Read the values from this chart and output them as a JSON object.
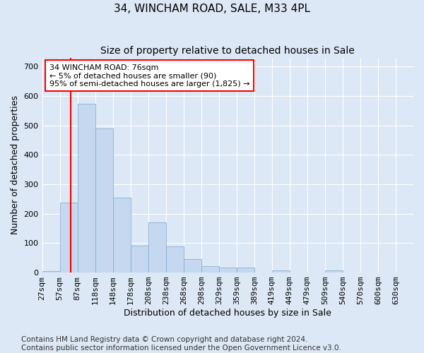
{
  "title": "34, WINCHAM ROAD, SALE, M33 4PL",
  "subtitle": "Size of property relative to detached houses in Sale",
  "xlabel": "Distribution of detached houses by size in Sale",
  "ylabel": "Number of detached properties",
  "bar_labels": [
    "27sqm",
    "57sqm",
    "87sqm",
    "118sqm",
    "148sqm",
    "178sqm",
    "208sqm",
    "238sqm",
    "268sqm",
    "298sqm",
    "329sqm",
    "359sqm",
    "389sqm",
    "419sqm",
    "449sqm",
    "479sqm",
    "509sqm",
    "540sqm",
    "570sqm",
    "600sqm",
    "630sqm"
  ],
  "bar_values": [
    5,
    237,
    572,
    490,
    255,
    92,
    170,
    90,
    45,
    22,
    18,
    18,
    0,
    8,
    0,
    0,
    7,
    0,
    0,
    0,
    0
  ],
  "bar_color": "#c5d8f0",
  "bar_edge_color": "#7ba8cc",
  "property_line_color": "red",
  "annotation_text": "34 WINCHAM ROAD: 76sqm\n← 5% of detached houses are smaller (90)\n95% of semi-detached houses are larger (1,825) →",
  "annotation_box_color": "white",
  "annotation_box_edge_color": "red",
  "ylim": [
    0,
    730
  ],
  "yticks": [
    0,
    100,
    200,
    300,
    400,
    500,
    600,
    700
  ],
  "background_color": "#dce8f5",
  "footer_line1": "Contains HM Land Registry data © Crown copyright and database right 2024.",
  "footer_line2": "Contains public sector information licensed under the Open Government Licence v3.0.",
  "title_fontsize": 11,
  "subtitle_fontsize": 10,
  "axis_label_fontsize": 9,
  "tick_fontsize": 8,
  "annotation_fontsize": 8,
  "footer_fontsize": 7.5
}
